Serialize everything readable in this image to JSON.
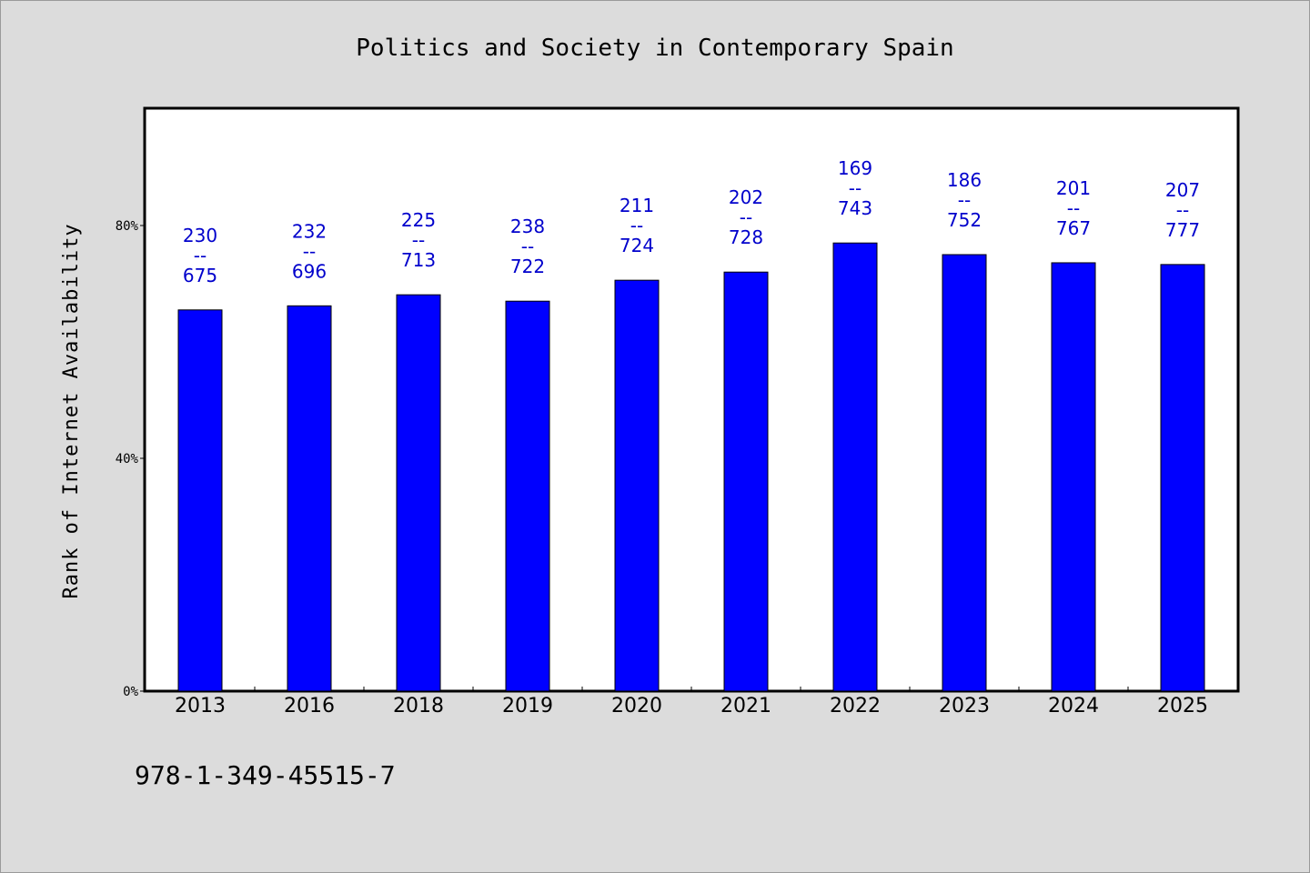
{
  "chart_data": {
    "type": "bar",
    "title": "Politics and Society in Contemporary Spain",
    "xlabel": "",
    "ylabel": "Rank of Internet Availability",
    "categories": [
      "2013",
      "2016",
      "2018",
      "2019",
      "2020",
      "2021",
      "2022",
      "2023",
      "2024",
      "2025"
    ],
    "values": [
      65.5,
      66.2,
      68.1,
      67.0,
      70.6,
      72.0,
      77.0,
      75.0,
      73.6,
      73.3
    ],
    "ylim": [
      0,
      100
    ],
    "yticks": [
      0,
      40,
      80
    ],
    "ytick_labels": [
      "0%",
      "40%",
      "80%"
    ],
    "bar_labels": [
      [
        "230",
        "--",
        "675"
      ],
      [
        "232",
        "--",
        "696"
      ],
      [
        "225",
        "--",
        "713"
      ],
      [
        "238",
        "--",
        "722"
      ],
      [
        "211",
        "--",
        "724"
      ],
      [
        "202",
        "--",
        "728"
      ],
      [
        "169",
        "--",
        "743"
      ],
      [
        "186",
        "--",
        "752"
      ],
      [
        "201",
        "--",
        "767"
      ],
      [
        "207",
        "--",
        "777"
      ]
    ],
    "bar_color": "#0000ff",
    "label_color": "#0000cc",
    "grid": false,
    "legend": "none"
  },
  "footer": {
    "isbn": "978-1-349-45515-7"
  }
}
